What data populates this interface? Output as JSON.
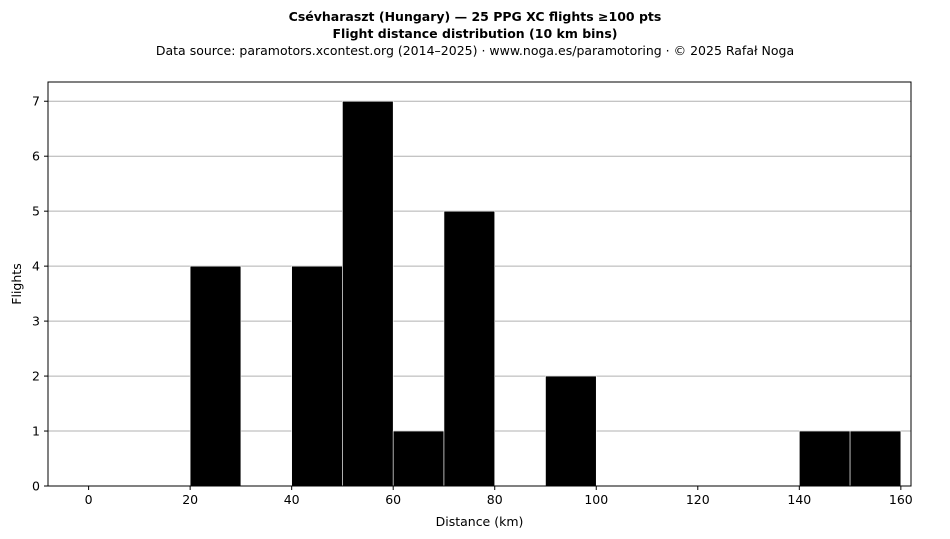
{
  "chart_data": {
    "type": "bar",
    "title": "Csévharaszt (Hungary)  —  25 PPG XC flights ≥100 pts",
    "subtitle": "Flight distance distribution (10 km bins)",
    "source_line": "Data source: paramotors.xcontest.org (2014–2025)  ·  www.noga.es/paramotoring  ·  © 2025 Rafał Noga",
    "xlabel": "Distance (km)",
    "ylabel": "Flights",
    "bin_width": 10,
    "bins": [
      {
        "start": 20,
        "end": 30,
        "count": 4
      },
      {
        "start": 40,
        "end": 50,
        "count": 4
      },
      {
        "start": 50,
        "end": 60,
        "count": 7
      },
      {
        "start": 60,
        "end": 70,
        "count": 1
      },
      {
        "start": 70,
        "end": 80,
        "count": 5
      },
      {
        "start": 90,
        "end": 100,
        "count": 2
      },
      {
        "start": 140,
        "end": 150,
        "count": 1
      },
      {
        "start": 150,
        "end": 160,
        "count": 1
      }
    ],
    "xlim": [
      -8,
      162
    ],
    "ylim": [
      0,
      7.35
    ],
    "xticks": [
      0,
      20,
      40,
      60,
      80,
      100,
      120,
      140,
      160
    ],
    "yticks": [
      0,
      1,
      2,
      3,
      4,
      5,
      6,
      7
    ],
    "grid": "horizontal",
    "bar_color": "#000000",
    "bar_edge_color": "#ffffff",
    "grid_color": "#b0b0b0"
  }
}
